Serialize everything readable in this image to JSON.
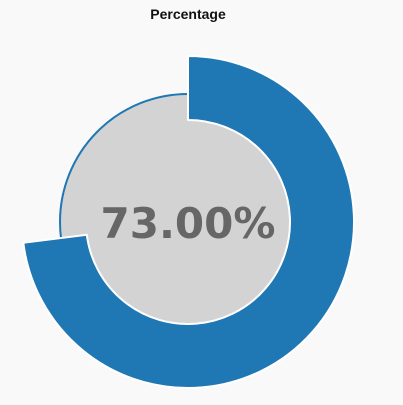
{
  "chart_data": {
    "type": "pie",
    "title": "Percentage",
    "value_percent": 73.0,
    "value_label": "73.00%",
    "colors": {
      "value": "#1f77b4",
      "track": "#d3d3d3",
      "label": "#666666",
      "background": "#f9f9f9"
    }
  }
}
